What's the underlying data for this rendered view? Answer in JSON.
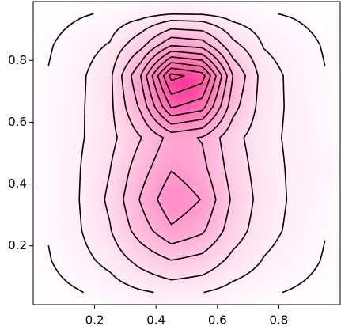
{
  "chart_data": {
    "type": "contour",
    "x": [
      0.05,
      0.15,
      0.25,
      0.35,
      0.45,
      0.55,
      0.65,
      0.75,
      0.85,
      0.95
    ],
    "y": [
      0.05,
      0.15,
      0.25,
      0.35,
      0.45,
      0.55,
      0.65,
      0.75,
      0.85,
      0.95
    ],
    "z": [
      [
        0.1,
        0.23,
        0.39,
        0.66,
        0.88,
        0.77,
        0.49,
        0.32,
        0.21,
        0.1
      ],
      [
        0.22,
        0.51,
        0.94,
        1.75,
        2.43,
        2.1,
        1.23,
        0.71,
        0.46,
        0.21
      ],
      [
        0.28,
        0.69,
        1.44,
        2.99,
        4.32,
        3.68,
        1.98,
        0.99,
        0.6,
        0.27
      ],
      [
        0.29,
        0.75,
        1.66,
        3.59,
        5.26,
        4.45,
        2.33,
        1.09,
        0.64,
        0.28
      ],
      [
        0.29,
        0.72,
        1.48,
        3.06,
        4.43,
        3.79,
        2.04,
        1.03,
        0.63,
        0.58
      ],
      [
        0.29,
        0.66,
        1.2,
        2.46,
        3.87,
        3.43,
        1.81,
        0.95,
        0.61,
        0.28
      ],
      [
        0.28,
        0.64,
        1.25,
        3.71,
        7.6,
        6.92,
        2.88,
        1.04,
        0.61,
        0.28
      ],
      [
        0.27,
        0.6,
        1.28,
        4.49,
        9.85,
        9.0,
        3.51,
        1.06,
        0.58,
        0.27
      ],
      [
        0.21,
        0.46,
        0.8,
        2.14,
        4.37,
        4.02,
        1.74,
        0.71,
        0.46,
        0.21
      ],
      [
        0.1,
        0.21,
        0.3,
        0.47,
        0.74,
        0.7,
        0.42,
        0.29,
        0.21,
        0.1
      ]
    ],
    "levels": [
      0.25,
      0.75,
      1.5,
      2.5,
      3.5,
      4.5,
      5.5,
      6.5,
      7.5,
      8.5,
      9.5
    ],
    "color": "#ff1a8c",
    "line_color": "#000000",
    "xlim": [
      0,
      1
    ],
    "ylim": [
      0.01,
      0.99
    ],
    "xticks": [
      0.2,
      0.4,
      0.6,
      0.8
    ],
    "yticks": [
      0.2,
      0.4,
      0.6,
      0.8
    ]
  }
}
